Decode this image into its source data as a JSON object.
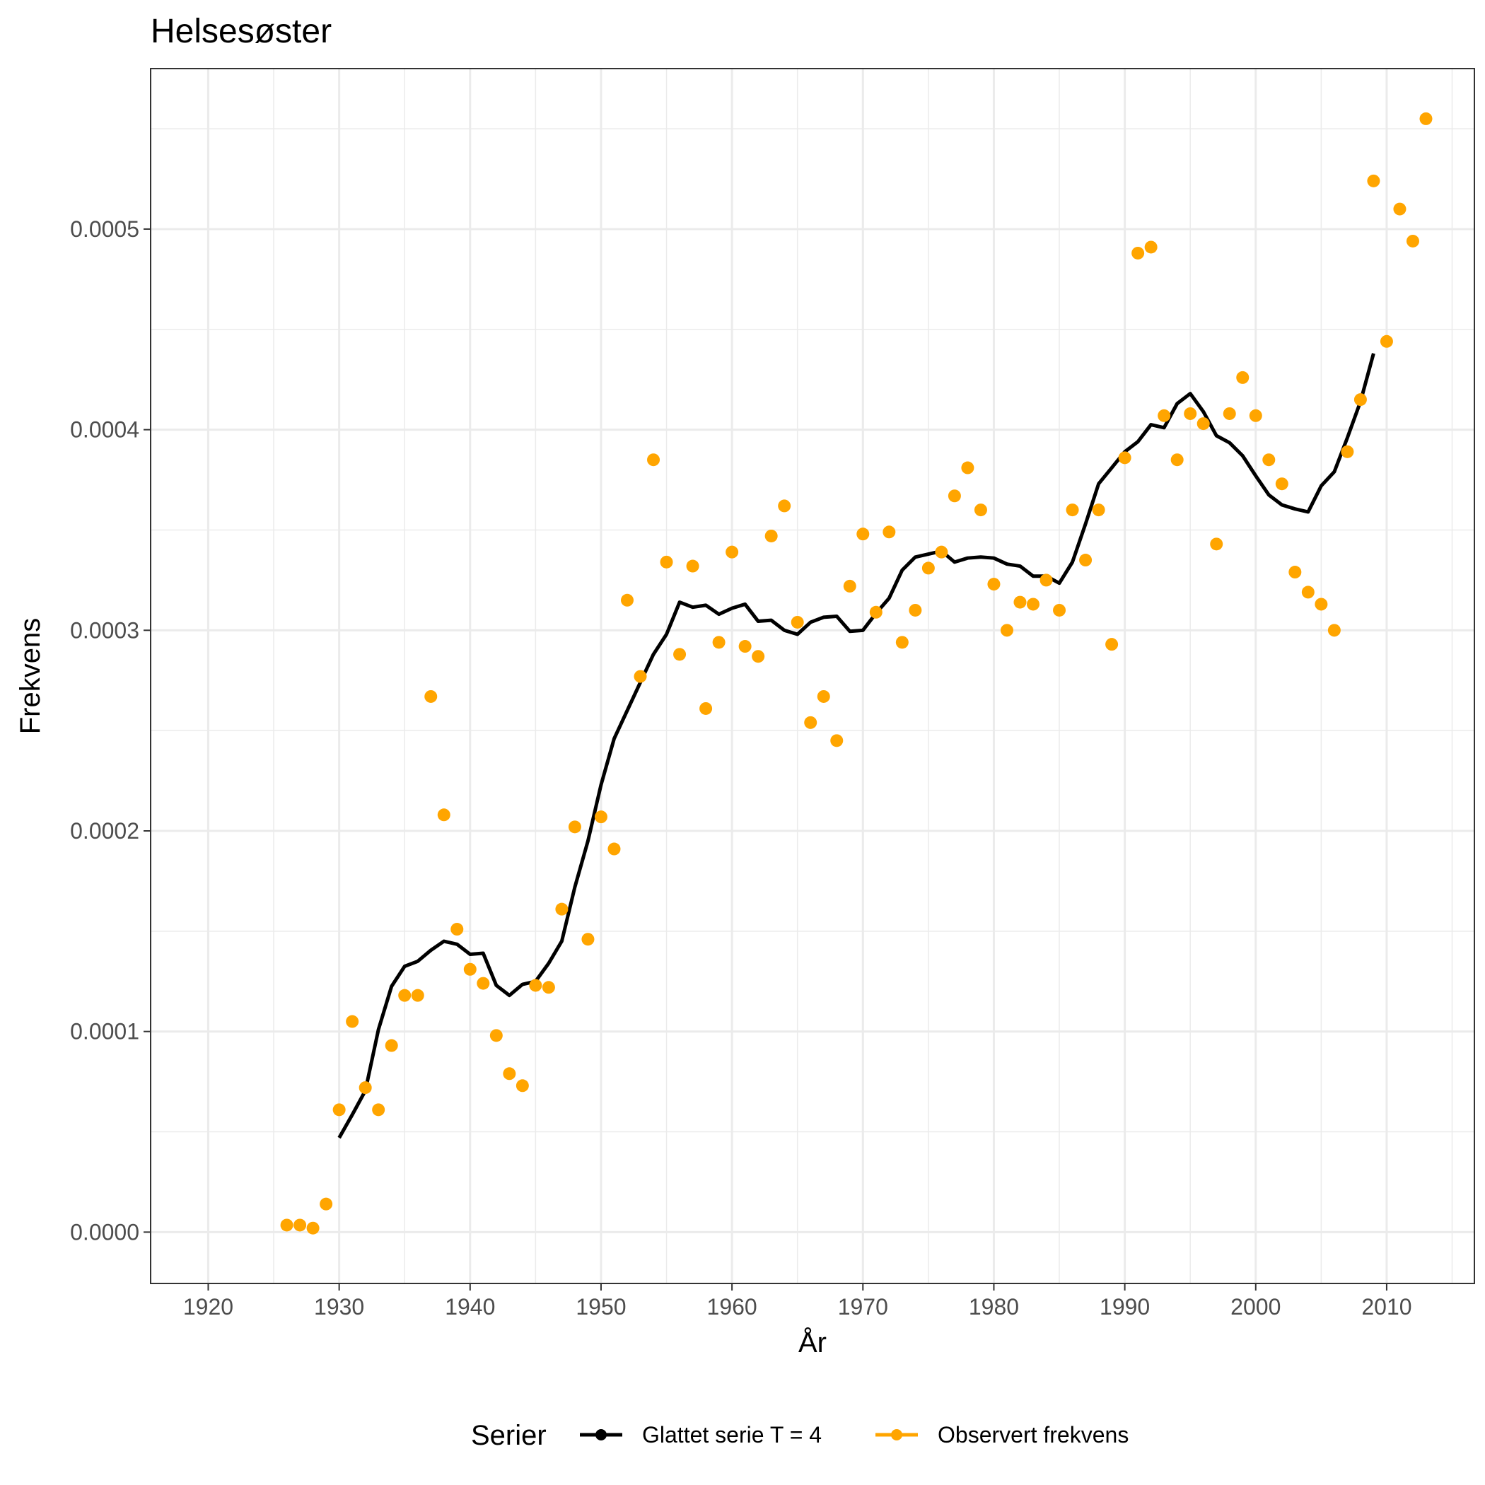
{
  "chart_data": {
    "type": "line",
    "title": "Helsesøster",
    "xlabel": "År",
    "ylabel": "Frekvens",
    "xlim": [
      1915.6,
      2016.7
    ],
    "ylim": [
      -2.56e-05,
      0.00058
    ],
    "x_ticks": [
      1920,
      1930,
      1940,
      1950,
      1960,
      1970,
      1980,
      1990,
      2000,
      2010
    ],
    "x_minor_ticks": [
      1915,
      1925,
      1935,
      1945,
      1955,
      1965,
      1975,
      1985,
      1995,
      2005,
      2015
    ],
    "y_ticks": [
      0,
      0.0001,
      0.0002,
      0.0003,
      0.0004,
      0.0005
    ],
    "y_tick_labels": [
      "0.0000",
      "0.0001",
      "0.0002",
      "0.0003",
      "0.0004",
      "0.0005"
    ],
    "y_minor_ticks": [
      5e-05,
      0.00015,
      0.00025,
      0.00035,
      0.00045,
      0.00055
    ],
    "grid": true,
    "legend": {
      "title": "Serier",
      "position": "bottom",
      "entries": [
        "Glattet serie T  = 4",
        "Observert frekvens"
      ]
    },
    "series": [
      {
        "name": "Glattet serie T  = 4",
        "kind": "line",
        "color": "#000000",
        "points": [
          [
            1930,
            4.7e-05
          ],
          [
            1931,
            5.85e-05
          ],
          [
            1932,
            7.05e-05
          ],
          [
            1933,
            0.000101
          ],
          [
            1934,
            0.0001225
          ],
          [
            1935,
            0.0001325
          ],
          [
            1936,
            0.000135
          ],
          [
            1937,
            0.0001405
          ],
          [
            1938,
            0.000145
          ],
          [
            1939,
            0.0001435
          ],
          [
            1940,
            0.0001385
          ],
          [
            1941,
            0.000139
          ],
          [
            1942,
            0.000123
          ],
          [
            1943,
            0.000118
          ],
          [
            1944,
            0.0001235
          ],
          [
            1945,
            0.000125
          ],
          [
            1946,
            0.000134
          ],
          [
            1947,
            0.000145
          ],
          [
            1948,
            0.000172
          ],
          [
            1949,
            0.000195
          ],
          [
            1950,
            0.000223
          ],
          [
            1951,
            0.000246
          ],
          [
            1952,
            0.00026
          ],
          [
            1953,
            0.000274
          ],
          [
            1954,
            0.000288
          ],
          [
            1955,
            0.000298
          ],
          [
            1956,
            0.000314
          ],
          [
            1957,
            0.0003115
          ],
          [
            1958,
            0.0003125
          ],
          [
            1959,
            0.000308
          ],
          [
            1960,
            0.000311
          ],
          [
            1961,
            0.000313
          ],
          [
            1962,
            0.0003045
          ],
          [
            1963,
            0.000305
          ],
          [
            1964,
            0.0003
          ],
          [
            1965,
            0.000298
          ],
          [
            1966,
            0.000304
          ],
          [
            1967,
            0.0003065
          ],
          [
            1968,
            0.000307
          ],
          [
            1969,
            0.0002995
          ],
          [
            1970,
            0.0003
          ],
          [
            1971,
            0.0003085
          ],
          [
            1972,
            0.000316
          ],
          [
            1973,
            0.00033
          ],
          [
            1974,
            0.0003365
          ],
          [
            1975,
            0.000338
          ],
          [
            1976,
            0.0003395
          ],
          [
            1977,
            0.000334
          ],
          [
            1978,
            0.000336
          ],
          [
            1979,
            0.0003365
          ],
          [
            1980,
            0.000336
          ],
          [
            1981,
            0.000333
          ],
          [
            1982,
            0.000332
          ],
          [
            1983,
            0.000327
          ],
          [
            1984,
            0.000327
          ],
          [
            1985,
            0.0003235
          ],
          [
            1986,
            0.000334
          ],
          [
            1987,
            0.000353
          ],
          [
            1988,
            0.000373
          ],
          [
            1989,
            0.000381
          ],
          [
            1990,
            0.000389
          ],
          [
            1991,
            0.000394
          ],
          [
            1992,
            0.0004025
          ],
          [
            1993,
            0.000401
          ],
          [
            1994,
            0.000413
          ],
          [
            1995,
            0.000418
          ],
          [
            1996,
            0.000409
          ],
          [
            1997,
            0.000397
          ],
          [
            1998,
            0.0003935
          ],
          [
            1999,
            0.000387
          ],
          [
            2000,
            0.000377
          ],
          [
            2001,
            0.0003675
          ],
          [
            2002,
            0.0003625
          ],
          [
            2003,
            0.0003605
          ],
          [
            2004,
            0.000359
          ],
          [
            2005,
            0.000372
          ],
          [
            2006,
            0.000379
          ],
          [
            2007,
            0.000396
          ],
          [
            2008,
            0.000414
          ],
          [
            2009,
            0.000438
          ]
        ]
      },
      {
        "name": "Observert frekvens",
        "kind": "scatter",
        "color": "#FFA500",
        "points": [
          [
            1926,
            3.5e-06
          ],
          [
            1927,
            3.5e-06
          ],
          [
            1928,
            2e-06
          ],
          [
            1929,
            1.4e-05
          ],
          [
            1930,
            6.1e-05
          ],
          [
            1931,
            0.000105
          ],
          [
            1932,
            7.2e-05
          ],
          [
            1933,
            6.1e-05
          ],
          [
            1934,
            9.3e-05
          ],
          [
            1935,
            0.000118
          ],
          [
            1936,
            0.000118
          ],
          [
            1937,
            0.000267
          ],
          [
            1938,
            0.000208
          ],
          [
            1939,
            0.000151
          ],
          [
            1940,
            0.000131
          ],
          [
            1941,
            0.000124
          ],
          [
            1942,
            9.8e-05
          ],
          [
            1943,
            7.9e-05
          ],
          [
            1944,
            7.3e-05
          ],
          [
            1945,
            0.000123
          ],
          [
            1946,
            0.000122
          ],
          [
            1947,
            0.000161
          ],
          [
            1948,
            0.000202
          ],
          [
            1949,
            0.000146
          ],
          [
            1950,
            0.000207
          ],
          [
            1951,
            0.000191
          ],
          [
            1952,
            0.000315
          ],
          [
            1953,
            0.000277
          ],
          [
            1954,
            0.000385
          ],
          [
            1955,
            0.000334
          ],
          [
            1956,
            0.000288
          ],
          [
            1957,
            0.000332
          ],
          [
            1958,
            0.000261
          ],
          [
            1959,
            0.000294
          ],
          [
            1960,
            0.000339
          ],
          [
            1961,
            0.000292
          ],
          [
            1962,
            0.000287
          ],
          [
            1963,
            0.000347
          ],
          [
            1964,
            0.000362
          ],
          [
            1965,
            0.000304
          ],
          [
            1966,
            0.000254
          ],
          [
            1967,
            0.000267
          ],
          [
            1968,
            0.000245
          ],
          [
            1969,
            0.000322
          ],
          [
            1970,
            0.000348
          ],
          [
            1971,
            0.000309
          ],
          [
            1972,
            0.000349
          ],
          [
            1973,
            0.000294
          ],
          [
            1974,
            0.00031
          ],
          [
            1975,
            0.000331
          ],
          [
            1976,
            0.000339
          ],
          [
            1977,
            0.000367
          ],
          [
            1978,
            0.000381
          ],
          [
            1979,
            0.00036
          ],
          [
            1980,
            0.000323
          ],
          [
            1981,
            0.0003
          ],
          [
            1982,
            0.000314
          ],
          [
            1983,
            0.000313
          ],
          [
            1984,
            0.000325
          ],
          [
            1985,
            0.00031
          ],
          [
            1986,
            0.00036
          ],
          [
            1987,
            0.000335
          ],
          [
            1988,
            0.00036
          ],
          [
            1989,
            0.000293
          ],
          [
            1990,
            0.000386
          ],
          [
            1991,
            0.000488
          ],
          [
            1992,
            0.000491
          ],
          [
            1993,
            0.000407
          ],
          [
            1994,
            0.000385
          ],
          [
            1995,
            0.000408
          ],
          [
            1996,
            0.000403
          ],
          [
            1997,
            0.000343
          ],
          [
            1998,
            0.000408
          ],
          [
            1999,
            0.000426
          ],
          [
            2000,
            0.000407
          ],
          [
            2001,
            0.000385
          ],
          [
            2002,
            0.000373
          ],
          [
            2003,
            0.000329
          ],
          [
            2004,
            0.000319
          ],
          [
            2005,
            0.000313
          ],
          [
            2006,
            0.0003
          ],
          [
            2007,
            0.000389
          ],
          [
            2008,
            0.000415
          ],
          [
            2009,
            0.000524
          ],
          [
            2010,
            0.000444
          ],
          [
            2011,
            0.00051
          ],
          [
            2012,
            0.000494
          ],
          [
            2013,
            0.000555
          ]
        ]
      }
    ]
  }
}
